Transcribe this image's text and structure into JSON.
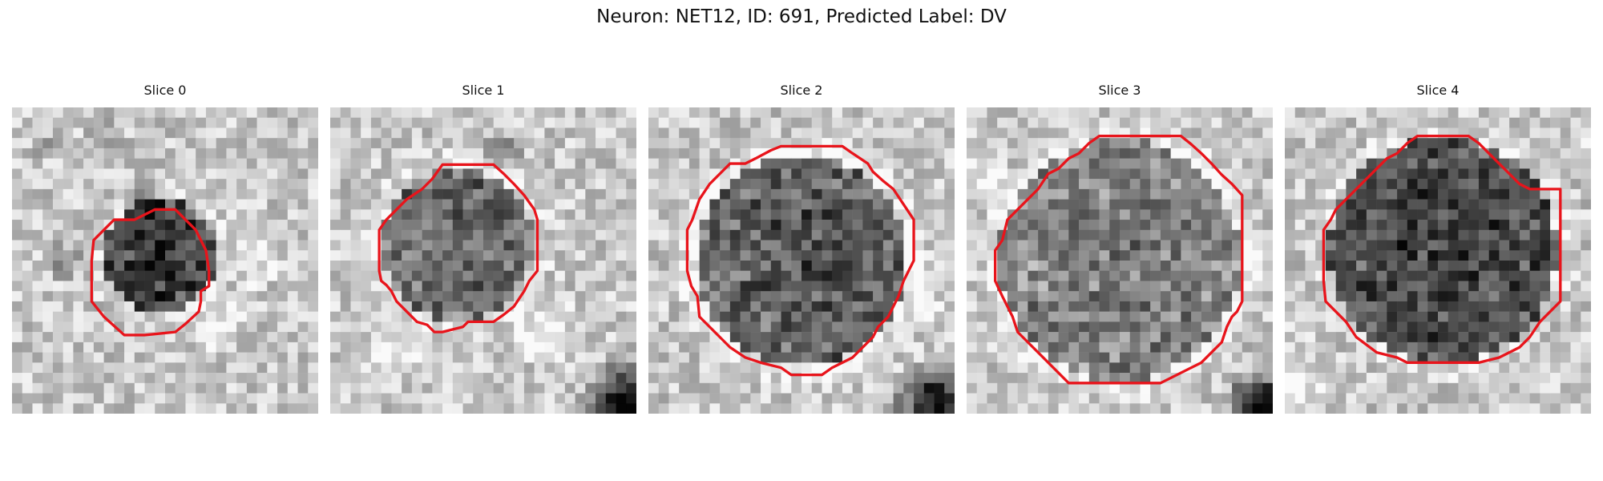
{
  "figure": {
    "title": "Neuron: NET12, ID: 691, Predicted Label: DV"
  },
  "contour_color": "#e8141b",
  "panels": [
    {
      "title": "Slice 0"
    },
    {
      "title": "Slice 1"
    },
    {
      "title": "Slice 2"
    },
    {
      "title": "Slice 3"
    },
    {
      "title": "Slice 4"
    }
  ]
}
